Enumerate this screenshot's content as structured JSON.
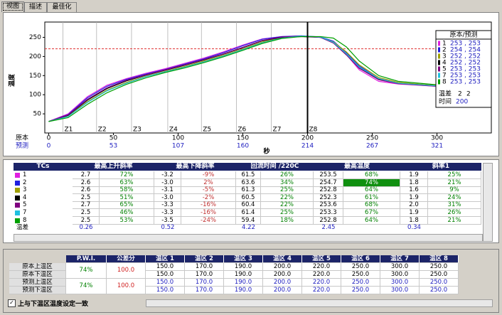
{
  "tabs": [
    "视图",
    "描述",
    "最佳化"
  ],
  "chart_data": {
    "type": "line",
    "y_label": "温度",
    "x_label": "秒",
    "xlim": [
      -3,
      342
    ],
    "ylim": [
      0,
      290
    ],
    "yticks": [
      50,
      100,
      150,
      200,
      250
    ],
    "xtick_row_labels": [
      "原本",
      "预测"
    ],
    "xticks": [
      0,
      50,
      100,
      150,
      200,
      250,
      300
    ],
    "xticks_predicted": [
      0,
      53,
      107,
      160,
      214,
      267,
      321
    ],
    "zones": {
      "labels": [
        "Z1",
        "Z2",
        "Z3",
        "Z4",
        "Z5",
        "Z6",
        "Z7",
        "Z8"
      ],
      "x": [
        11,
        37,
        64,
        92,
        118,
        145,
        172,
        200
      ]
    },
    "cursor_x": 200,
    "limit_line": 220,
    "limit_color": "#e03030",
    "x": [
      0,
      15,
      30,
      45,
      60,
      75,
      90,
      105,
      120,
      135,
      150,
      165,
      180,
      195,
      210,
      220,
      230,
      240,
      255,
      270,
      300,
      330
    ],
    "series": [
      {
        "name": "1",
        "color": "#e020e0",
        "values": [
          30,
          50,
          95,
          125,
          142,
          156,
          168,
          182,
          196,
          212,
          230,
          246,
          252,
          253,
          250,
          238,
          205,
          165,
          135,
          128,
          122,
          114
        ]
      },
      {
        "name": "2",
        "color": "#2020e0",
        "values": [
          30,
          48,
          92,
          122,
          140,
          154,
          166,
          180,
          194,
          210,
          228,
          245,
          252,
          254,
          251,
          240,
          210,
          175,
          142,
          131,
          124,
          116
        ]
      },
      {
        "name": "3",
        "color": "#a0a000",
        "values": [
          30,
          44,
          82,
          112,
          132,
          148,
          161,
          174,
          188,
          203,
          220,
          238,
          249,
          252,
          250,
          238,
          212,
          178,
          145,
          132,
          124,
          117
        ]
      },
      {
        "name": "4",
        "color": "#000000",
        "values": [
          30,
          46,
          86,
          116,
          136,
          151,
          164,
          177,
          191,
          206,
          223,
          241,
          250,
          252,
          250,
          236,
          206,
          171,
          141,
          130,
          123,
          115
        ]
      },
      {
        "name": "5",
        "color": "#800080",
        "values": [
          30,
          47,
          88,
          118,
          138,
          152,
          165,
          178,
          192,
          207,
          224,
          242,
          251,
          253,
          250,
          235,
          204,
          169,
          139,
          129,
          122,
          114
        ]
      },
      {
        "name": "7",
        "color": "#20c0e0",
        "values": [
          30,
          43,
          80,
          110,
          130,
          147,
          160,
          172,
          186,
          201,
          218,
          236,
          248,
          253,
          251,
          237,
          207,
          172,
          142,
          130,
          123,
          116
        ]
      },
      {
        "name": "8",
        "color": "#00a000",
        "values": [
          30,
          40,
          75,
          105,
          127,
          144,
          158,
          170,
          184,
          199,
          216,
          234,
          247,
          252,
          252,
          248,
          225,
          188,
          150,
          135,
          126,
          118
        ]
      }
    ],
    "legend": {
      "title": "原本/预测",
      "values": [
        "253 , 253",
        "254 , 254",
        "252 , 252",
        "252 , 252",
        "253 , 253",
        "253 , 253",
        "253 , 253"
      ],
      "temp_diff_label": "温差",
      "temp_diff": [
        "2",
        "2"
      ],
      "time_label": "时间",
      "time": "200"
    }
  },
  "tc_table": {
    "headers": [
      "TCs",
      "最高上升斜率",
      "最高下降斜率",
      "回流时间 /220C",
      "最高温度",
      "斜率1"
    ],
    "rows": [
      [
        "2.7",
        "72%",
        "-3.2",
        "-9%",
        "61.5",
        "26%",
        "253.5",
        "68%",
        "1.9",
        "25%"
      ],
      [
        "2.6",
        "63%",
        "-3.0",
        "2%",
        "63.6",
        "34%",
        "254.7",
        "74%",
        "1.8",
        "21%"
      ],
      [
        "2.6",
        "58%",
        "-3.1",
        "-5%",
        "61.3",
        "25%",
        "252.8",
        "64%",
        "1.6",
        "9%"
      ],
      [
        "2.5",
        "51%",
        "-3.0",
        "-2%",
        "60.5",
        "22%",
        "252.3",
        "61%",
        "1.9",
        "24%"
      ],
      [
        "2.7",
        "65%",
        "-3.3",
        "-16%",
        "60.4",
        "22%",
        "253.6",
        "68%",
        "2.0",
        "31%"
      ],
      [
        "2.5",
        "46%",
        "-3.3",
        "-16%",
        "61.4",
        "25%",
        "253.3",
        "67%",
        "1.9",
        "26%"
      ],
      [
        "2.5",
        "53%",
        "-3.5",
        "-24%",
        "59.4",
        "18%",
        "252.8",
        "64%",
        "1.8",
        "21%"
      ]
    ],
    "diff_label": "温差",
    "diff": [
      "0.26",
      "0.52",
      "4.22",
      "2.45",
      "0.34"
    ]
  },
  "zone_table": {
    "headers": [
      "P.W.I.",
      "公差分",
      "温区 1",
      "温区 2",
      "温区 3",
      "温区 4",
      "温区 5",
      "温区 6",
      "温区 7",
      "温区 8"
    ],
    "row_labels": [
      "原本上温区",
      "原本下温区",
      "预测上温区",
      "预测下温区"
    ],
    "pwi": [
      "74%",
      "74%"
    ],
    "tolerance": [
      "100.0",
      "100.0"
    ],
    "rows": [
      [
        "150.0",
        "170.0",
        "190.0",
        "200.0",
        "220.0",
        "250.0",
        "300.0",
        "250.0"
      ],
      [
        "150.0",
        "170.0",
        "190.0",
        "200.0",
        "220.0",
        "250.0",
        "300.0",
        "250.0"
      ],
      [
        "150.0",
        "170.0",
        "190.0",
        "200.0",
        "220.0",
        "250.0",
        "300.0",
        "250.0"
      ],
      [
        "150.0",
        "170.0",
        "190.0",
        "200.0",
        "220.0",
        "250.0",
        "300.0",
        "250.0"
      ]
    ]
  },
  "checkbox_label": "上与下温区温度设定一致"
}
